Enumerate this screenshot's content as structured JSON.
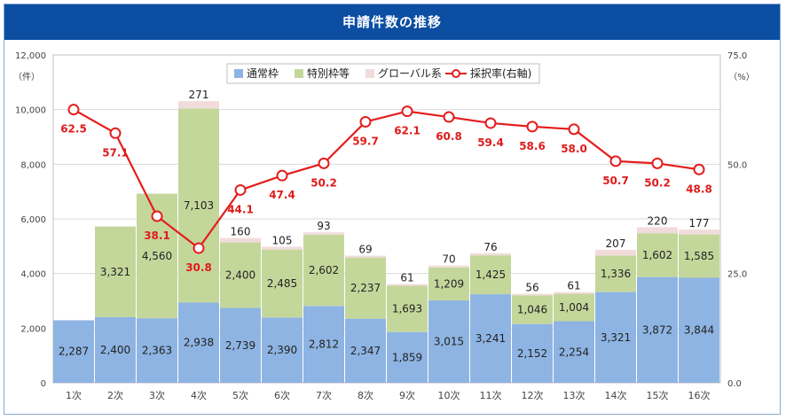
{
  "title": "申請件数の推移",
  "chart_data": {
    "type": "bar",
    "stacked": true,
    "categories": [
      "1次",
      "2次",
      "3次",
      "4次",
      "5次",
      "6次",
      "7次",
      "8次",
      "9次",
      "10次",
      "11次",
      "12次",
      "13次",
      "14次",
      "15次",
      "16次"
    ],
    "series": [
      {
        "name": "通常枠",
        "color": "#8eb4e3",
        "values": [
          2287,
          2400,
          2363,
          2938,
          2739,
          2390,
          2812,
          2347,
          1859,
          3015,
          3241,
          2152,
          2254,
          3321,
          3872,
          3844
        ]
      },
      {
        "name": "特別枠等",
        "color": "#c4d79b",
        "values": [
          null,
          3321,
          4560,
          7103,
          2400,
          2485,
          2602,
          2237,
          1693,
          1209,
          1425,
          1046,
          1004,
          1336,
          1602,
          1585
        ]
      },
      {
        "name": "グローバル系",
        "color": "#f2dcdb",
        "values": [
          null,
          null,
          null,
          271,
          160,
          105,
          93,
          69,
          61,
          70,
          76,
          56,
          61,
          207,
          220,
          177
        ]
      }
    ],
    "line_series": {
      "name": "採択率(右軸)",
      "color": "#e41e1e",
      "axis": "right",
      "values": [
        62.5,
        57.1,
        38.1,
        30.8,
        44.1,
        47.4,
        50.2,
        59.7,
        62.1,
        60.8,
        59.4,
        58.6,
        58.0,
        50.7,
        50.2,
        48.8
      ]
    },
    "left_axis": {
      "unit": "（件）",
      "ylim": [
        0,
        12000
      ],
      "ticks": [
        "0",
        "2,000",
        "4,000",
        "6,000",
        "8,000",
        "10,000",
        "12,000"
      ]
    },
    "right_axis": {
      "unit": "（%）",
      "ylim": [
        0,
        75
      ],
      "ticks": [
        "0.0",
        "25.0",
        "50.0",
        "75.0"
      ]
    },
    "legend": {
      "position": "top",
      "items": [
        "通常枠",
        "特別枠等",
        "グローバル系",
        "採択率(右軸)"
      ]
    },
    "grid": true
  }
}
